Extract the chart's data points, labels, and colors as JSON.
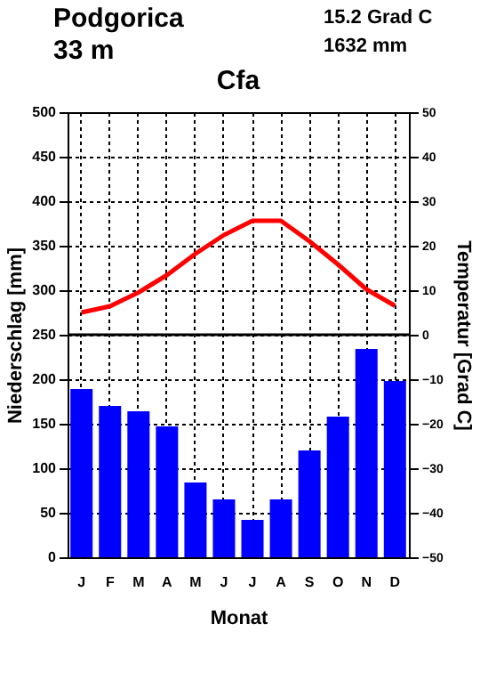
{
  "chart_data": {
    "type": "bar",
    "title": "Cfa",
    "annotations": [
      "Podgorica",
      "33 m",
      "15.2 Grad C",
      "1632 mm"
    ],
    "xlabel": "Monat",
    "ylabel": "Niederschlag [mm]",
    "y2label": "Temperatur [Grad C]",
    "categories": [
      "J",
      "F",
      "M",
      "A",
      "M",
      "J",
      "J",
      "A",
      "S",
      "O",
      "N",
      "D"
    ],
    "series": [
      {
        "color": "#0000ff",
        "values": [
          189,
          170,
          164,
          147,
          84,
          65,
          42,
          65,
          120,
          158,
          234,
          198
        ]
      },
      {
        "type": "line",
        "axis": "y2",
        "color": "#ff0000",
        "values": [
          5,
          6.4,
          9.5,
          13.4,
          18.2,
          22.4,
          25.6,
          25.6,
          21,
          15.8,
          10.2,
          6.5
        ]
      }
    ],
    "ylim": [
      0,
      500
    ],
    "yticks": [
      0,
      50,
      100,
      150,
      200,
      250,
      300,
      350,
      400,
      450,
      500
    ],
    "y2lim": [
      -50,
      50
    ],
    "y2ticks": [
      -50,
      -40,
      -30,
      -20,
      -10,
      0,
      10,
      20,
      30,
      40,
      50
    ],
    "ref_lines": [
      {
        "axis": "y2",
        "value": 0,
        "color": "#000000"
      }
    ],
    "grid": true
  }
}
